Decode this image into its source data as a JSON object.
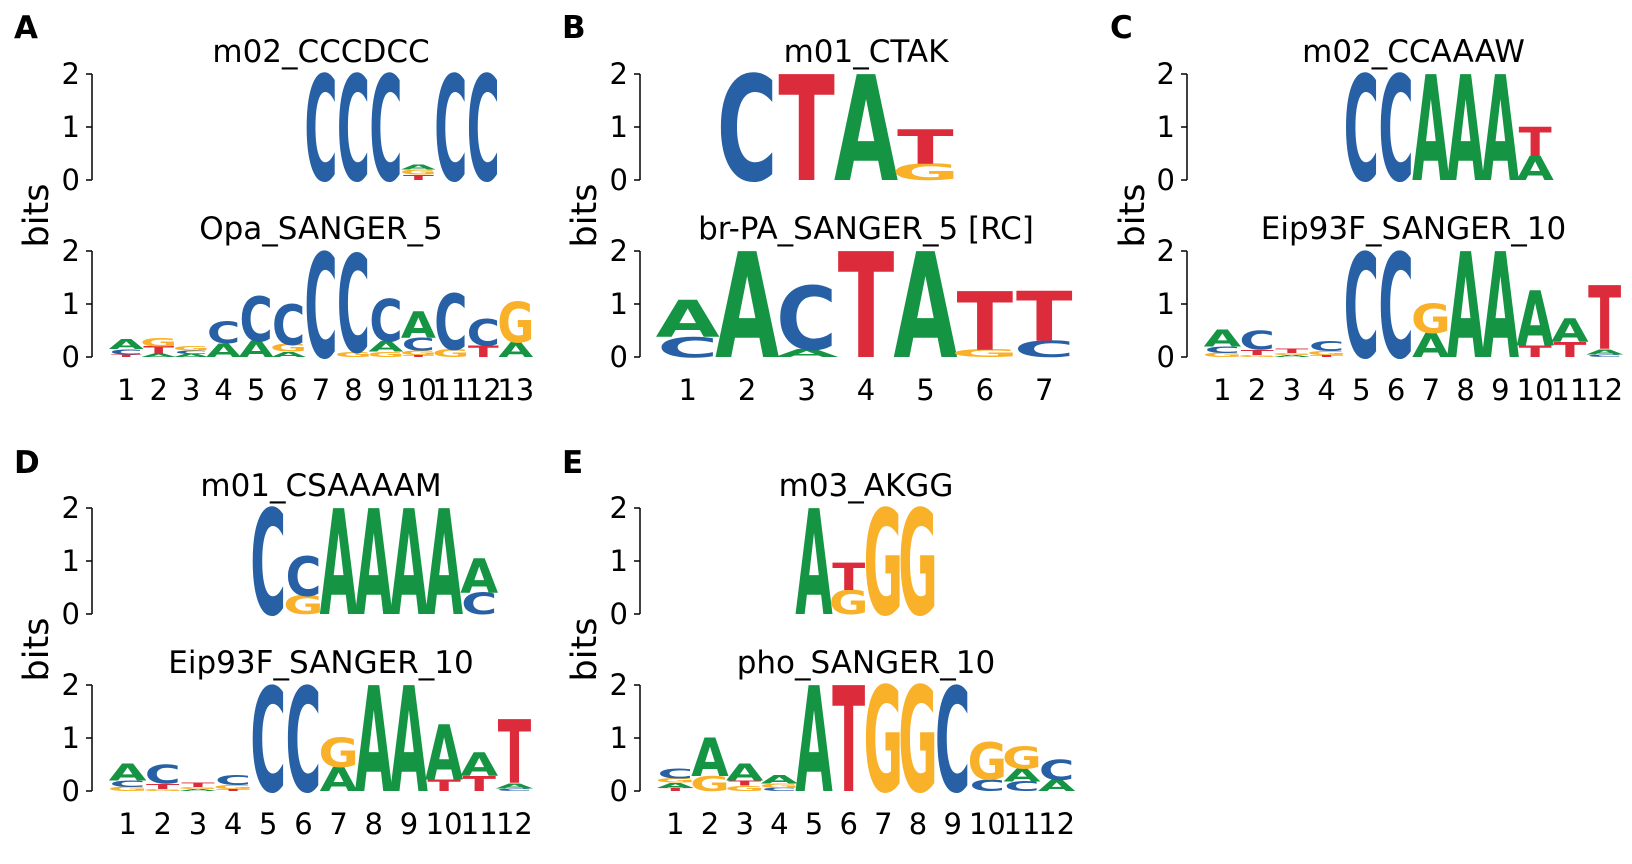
{
  "colors": {
    "A": "#159544",
    "C": "#2760a4",
    "G": "#f9b12a",
    "T": "#dc2c3c"
  },
  "y_axis_label": "bits",
  "y_ticks": [
    "2",
    "1",
    "0"
  ],
  "panels": [
    {
      "label": "A",
      "top": {
        "title": "m02_CCCDCC",
        "offset": 6,
        "length": 6,
        "columns": [
          [
            [
              "C",
              2
            ]
          ],
          [
            [
              "C",
              2
            ]
          ],
          [
            [
              "C",
              2
            ]
          ],
          [
            [
              "T",
              0.1
            ],
            [
              "G",
              0.1
            ],
            [
              "A",
              0.1
            ]
          ],
          [
            [
              "C",
              2
            ]
          ],
          [
            [
              "C",
              2
            ]
          ]
        ]
      },
      "bottom": {
        "title": "Opa_SANGER_5",
        "length": 13,
        "x_ticks": [
          "1",
          "2",
          "3",
          "4",
          "5",
          "6",
          "7",
          "8",
          "9",
          "10",
          "11",
          "12",
          "13"
        ],
        "columns": [
          [
            [
              "T",
              0.05
            ],
            [
              "C",
              0.1
            ],
            [
              "A",
              0.18
            ]
          ],
          [
            [
              "A",
              0.06
            ],
            [
              "T",
              0.14
            ],
            [
              "G",
              0.16
            ]
          ],
          [
            [
              "A",
              0.06
            ],
            [
              "C",
              0.06
            ],
            [
              "G",
              0.08
            ]
          ],
          [
            [
              "A",
              0.26
            ],
            [
              "C",
              0.4
            ]
          ],
          [
            [
              "A",
              0.3
            ],
            [
              "C",
              0.85
            ]
          ],
          [
            [
              "A",
              0.1
            ],
            [
              "G",
              0.14
            ],
            [
              "C",
              0.76
            ]
          ],
          [
            [
              "C",
              1.98
            ]
          ],
          [
            [
              "G",
              0.1
            ],
            [
              "C",
              1.85
            ]
          ],
          [
            [
              "G",
              0.1
            ],
            [
              "A",
              0.2
            ],
            [
              "C",
              0.8
            ]
          ],
          [
            [
              "T",
              0.04
            ],
            [
              "G",
              0.08
            ],
            [
              "C",
              0.24
            ],
            [
              "A",
              0.5
            ]
          ],
          [
            [
              "G",
              0.14
            ],
            [
              "C",
              1.06
            ]
          ],
          [
            [
              "T",
              0.22
            ],
            [
              "C",
              0.5
            ]
          ],
          [
            [
              "A",
              0.28
            ],
            [
              "G",
              0.76
            ]
          ]
        ]
      }
    },
    {
      "label": "B",
      "top": {
        "title": "m01_CTAK",
        "offset": 1,
        "length": 4,
        "columns": [
          [
            [
              "C",
              2
            ]
          ],
          [
            [
              "T",
              2
            ]
          ],
          [
            [
              "A",
              2
            ]
          ],
          [
            [
              "G",
              0.3
            ],
            [
              "T",
              0.65
            ]
          ]
        ]
      },
      "bottom": {
        "title": "br-PA_SANGER_5 [RC]",
        "length": 7,
        "x_ticks": [
          "1",
          "2",
          "3",
          "4",
          "5",
          "6",
          "7"
        ],
        "columns": [
          [
            [
              "C",
              0.38
            ],
            [
              "A",
              0.7
            ]
          ],
          [
            [
              "A",
              2
            ]
          ],
          [
            [
              "A",
              0.14
            ],
            [
              "C",
              1.2
            ]
          ],
          [
            [
              "T",
              2
            ]
          ],
          [
            [
              "A",
              2
            ]
          ],
          [
            [
              "G",
              0.14
            ],
            [
              "T",
              1.1
            ]
          ],
          [
            [
              "C",
              0.3
            ],
            [
              "T",
              0.95
            ]
          ]
        ]
      }
    },
    {
      "label": "C",
      "top": {
        "title": "m02_CCAAAW",
        "offset": 4,
        "length": 6,
        "columns": [
          [
            [
              "C",
              2
            ]
          ],
          [
            [
              "C",
              2
            ]
          ],
          [
            [
              "A",
              2
            ]
          ],
          [
            [
              "A",
              2
            ]
          ],
          [
            [
              "A",
              2
            ]
          ],
          [
            [
              "A",
              0.45
            ],
            [
              "T",
              0.55
            ]
          ]
        ]
      },
      "bottom": {
        "title": "Eip93F_SANGER_10",
        "length": 12,
        "x_ticks": [
          "1",
          "2",
          "3",
          "4",
          "5",
          "6",
          "7",
          "8",
          "9",
          "10",
          "11",
          "12"
        ],
        "columns": [
          [
            [
              "G",
              0.08
            ],
            [
              "C",
              0.12
            ],
            [
              "A",
              0.32
            ]
          ],
          [
            [
              "G",
              0.04
            ],
            [
              "T",
              0.1
            ],
            [
              "C",
              0.36
            ]
          ],
          [
            [
              "A",
              0.04
            ],
            [
              "G",
              0.04
            ],
            [
              "T",
              0.08
            ]
          ],
          [
            [
              "T",
              0.04
            ],
            [
              "G",
              0.07
            ],
            [
              "C",
              0.18
            ]
          ],
          [
            [
              "C",
              1.98
            ]
          ],
          [
            [
              "C",
              1.98
            ]
          ],
          [
            [
              "A",
              0.45
            ],
            [
              "G",
              0.55
            ]
          ],
          [
            [
              "A",
              2
            ]
          ],
          [
            [
              "A",
              2
            ]
          ],
          [
            [
              "T",
              0.22
            ],
            [
              "A",
              1.04
            ]
          ],
          [
            [
              "T",
              0.28
            ],
            [
              "A",
              0.44
            ]
          ],
          [
            [
              "C",
              0.05
            ],
            [
              "A",
              0.1
            ],
            [
              "T",
              1.2
            ]
          ]
        ]
      }
    },
    {
      "label": "D",
      "top": {
        "title": "m01_CSAAAAM",
        "offset": 4,
        "length": 7,
        "columns": [
          [
            [
              "C",
              2
            ]
          ],
          [
            [
              "G",
              0.35
            ],
            [
              "C",
              0.75
            ]
          ],
          [
            [
              "A",
              2
            ]
          ],
          [
            [
              "A",
              2
            ]
          ],
          [
            [
              "A",
              2
            ]
          ],
          [
            [
              "A",
              2
            ]
          ],
          [
            [
              "C",
              0.4
            ],
            [
              "A",
              0.65
            ]
          ]
        ]
      },
      "bottom": {
        "title": "Eip93F_SANGER_10",
        "length": 12,
        "x_ticks": [
          "1",
          "2",
          "3",
          "4",
          "5",
          "6",
          "7",
          "8",
          "9",
          "10",
          "11",
          "12"
        ],
        "columns": [
          [
            [
              "G",
              0.08
            ],
            [
              "C",
              0.12
            ],
            [
              "A",
              0.32
            ]
          ],
          [
            [
              "G",
              0.04
            ],
            [
              "T",
              0.1
            ],
            [
              "C",
              0.36
            ]
          ],
          [
            [
              "A",
              0.04
            ],
            [
              "G",
              0.04
            ],
            [
              "T",
              0.08
            ]
          ],
          [
            [
              "T",
              0.04
            ],
            [
              "G",
              0.07
            ],
            [
              "C",
              0.18
            ]
          ],
          [
            [
              "C",
              1.98
            ]
          ],
          [
            [
              "C",
              1.98
            ]
          ],
          [
            [
              "A",
              0.45
            ],
            [
              "G",
              0.55
            ]
          ],
          [
            [
              "A",
              2
            ]
          ],
          [
            [
              "A",
              2
            ]
          ],
          [
            [
              "T",
              0.22
            ],
            [
              "A",
              1.04
            ]
          ],
          [
            [
              "T",
              0.28
            ],
            [
              "A",
              0.44
            ]
          ],
          [
            [
              "C",
              0.05
            ],
            [
              "A",
              0.1
            ],
            [
              "T",
              1.2
            ]
          ]
        ]
      }
    },
    {
      "label": "E",
      "top": {
        "title": "m03_AKGG",
        "offset": 4,
        "length": 4,
        "columns": [
          [
            [
              "A",
              2
            ]
          ],
          [
            [
              "G",
              0.45
            ],
            [
              "T",
              0.52
            ]
          ],
          [
            [
              "G",
              2
            ]
          ],
          [
            [
              "G",
              2
            ]
          ]
        ]
      },
      "bottom": {
        "title": "pho_SANGER_10",
        "length": 12,
        "x_ticks": [
          "1",
          "2",
          "3",
          "4",
          "5",
          "6",
          "7",
          "8",
          "9",
          "10",
          "11",
          "12"
        ],
        "columns": [
          [
            [
              "T",
              0.06
            ],
            [
              "A",
              0.1
            ],
            [
              "G",
              0.08
            ],
            [
              "C",
              0.18
            ]
          ],
          [
            [
              "G",
              0.28
            ],
            [
              "A",
              0.72
            ]
          ],
          [
            [
              "G",
              0.1
            ],
            [
              "T",
              0.1
            ],
            [
              "A",
              0.32
            ]
          ],
          [
            [
              "C",
              0.06
            ],
            [
              "G",
              0.08
            ],
            [
              "A",
              0.16
            ]
          ],
          [
            [
              "A",
              2
            ]
          ],
          [
            [
              "T",
              2
            ]
          ],
          [
            [
              "G",
              2
            ]
          ],
          [
            [
              "G",
              2
            ]
          ],
          [
            [
              "C",
              1.98
            ]
          ],
          [
            [
              "C",
              0.22
            ],
            [
              "G",
              0.7
            ]
          ],
          [
            [
              "C",
              0.18
            ],
            [
              "A",
              0.24
            ],
            [
              "G",
              0.42
            ]
          ],
          [
            [
              "A",
              0.22
            ],
            [
              "C",
              0.38
            ]
          ]
        ]
      }
    }
  ]
}
